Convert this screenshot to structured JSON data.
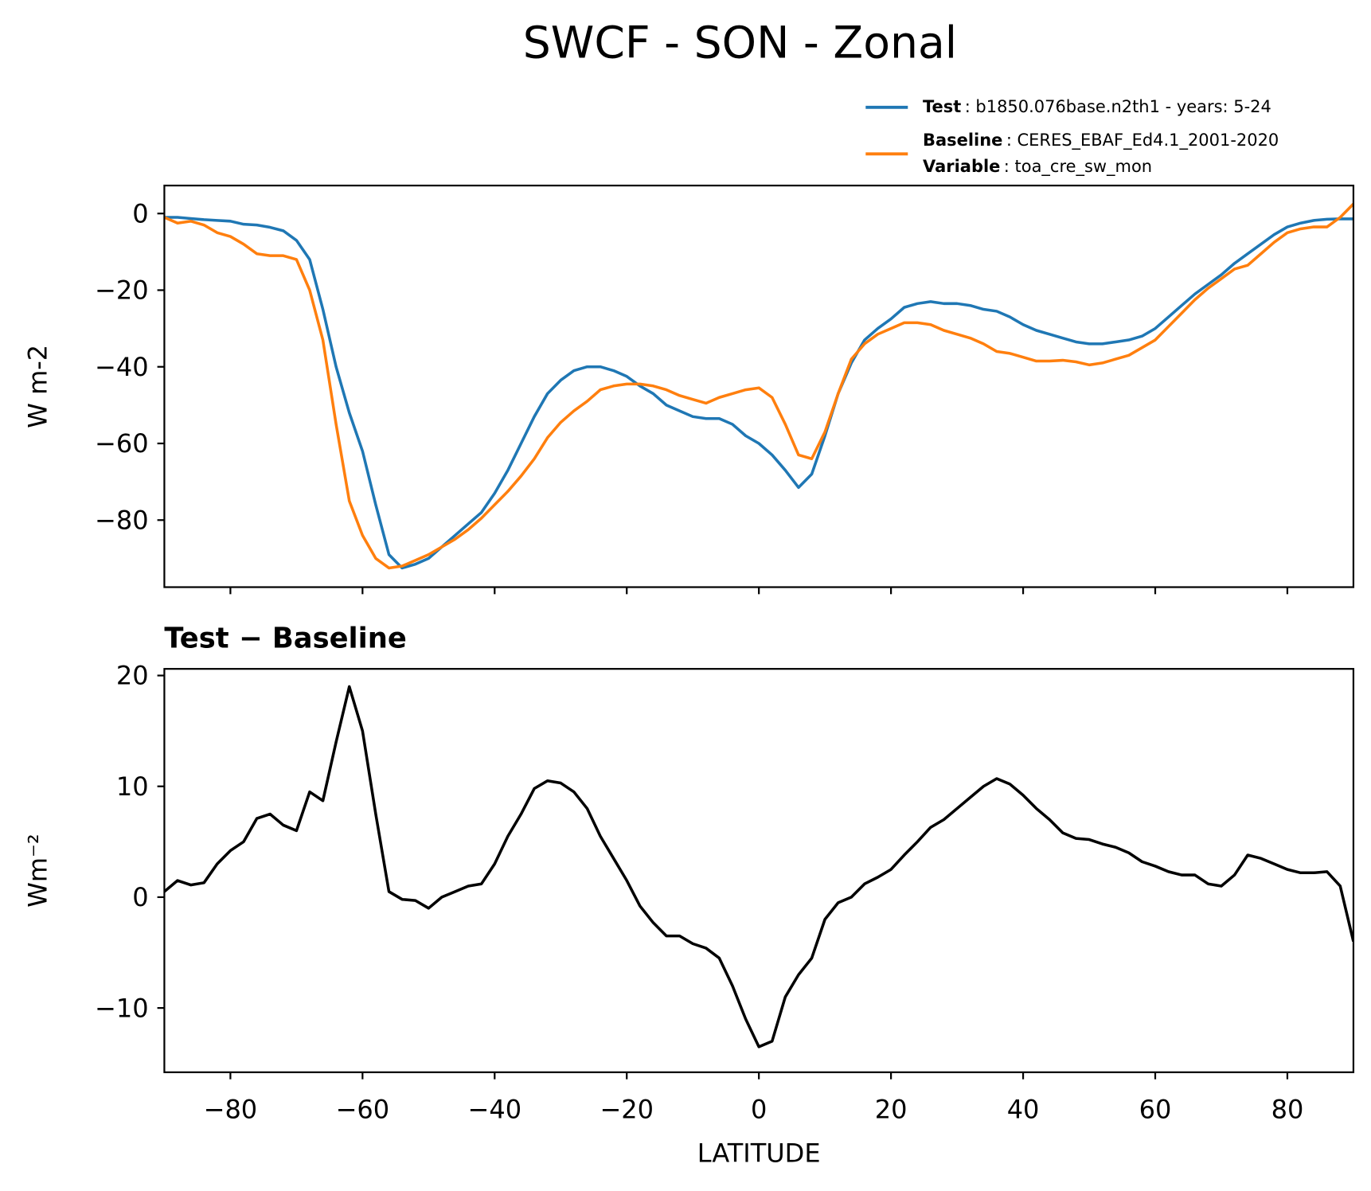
{
  "chart_data": [
    {
      "type": "line",
      "title": "SWCF - SON - Zonal",
      "ylabel": "W m-2",
      "x": [
        -90,
        -88,
        -86,
        -84,
        -82,
        -80,
        -78,
        -76,
        -74,
        -72,
        -70,
        -68,
        -66,
        -64,
        -62,
        -60,
        -58,
        -56,
        -54,
        -52,
        -50,
        -48,
        -46,
        -44,
        -42,
        -40,
        -38,
        -36,
        -34,
        -32,
        -30,
        -28,
        -26,
        -24,
        -22,
        -20,
        -18,
        -16,
        -14,
        -12,
        -10,
        -8,
        -6,
        -4,
        -2,
        0,
        2,
        4,
        6,
        8,
        10,
        12,
        14,
        16,
        18,
        20,
        22,
        24,
        26,
        28,
        30,
        32,
        34,
        36,
        38,
        40,
        42,
        44,
        46,
        48,
        50,
        52,
        54,
        56,
        58,
        60,
        62,
        64,
        66,
        68,
        70,
        72,
        74,
        76,
        78,
        80,
        82,
        84,
        86,
        88,
        90
      ],
      "series": [
        {
          "name": "Test",
          "description": ": b1850.076base.n2th1 - years: 5-24",
          "color": "#1f77b4",
          "values": [
            -1,
            -1,
            -1.3,
            -1.6,
            -1.8,
            -2,
            -2.8,
            -3,
            -3.6,
            -4.5,
            -7,
            -12,
            -25,
            -40,
            -52,
            -62,
            -76,
            -89,
            -92.5,
            -91.5,
            -90,
            -87,
            -84,
            -81,
            -78,
            -73,
            -67,
            -60,
            -53,
            -47,
            -43.5,
            -41,
            -40,
            -40,
            -41,
            -42.5,
            -45,
            -47,
            -50,
            -51.5,
            -53,
            -53.5,
            -53.5,
            -55,
            -58,
            -60,
            -63,
            -67,
            -71.5,
            -68,
            -58,
            -47,
            -39,
            -33,
            -30,
            -27.5,
            -24.5,
            -23.5,
            -23,
            -23.5,
            -23.5,
            -24,
            -25,
            -25.5,
            -27,
            -29,
            -30.5,
            -31.5,
            -32.5,
            -33.5,
            -34,
            -34,
            -33.5,
            -33,
            -32,
            -30,
            -27,
            -24,
            -21,
            -18.5,
            -16,
            -13,
            -10.5,
            -8,
            -5.5,
            -3.5,
            -2.5,
            -1.8,
            -1.5,
            -1.4,
            -1.4
          ]
        },
        {
          "name": "Baseline",
          "description": ": CERES_EBAF_Ed4.1_2001-2020",
          "color": "#ff7f0e",
          "values": [
            -1,
            -2.5,
            -2,
            -3,
            -5,
            -6,
            -8,
            -10.5,
            -11,
            -11,
            -12,
            -20,
            -33,
            -55,
            -75,
            -84,
            -90,
            -92.5,
            -92,
            -90.5,
            -89,
            -87,
            -85,
            -82.5,
            -79.5,
            -76,
            -72.5,
            -68.5,
            -64,
            -58.5,
            -54.5,
            -51.5,
            -49,
            -46,
            -45,
            -44.5,
            -44.5,
            -45,
            -46,
            -47.5,
            -48.5,
            -49.5,
            -48,
            -47,
            -46,
            -45.5,
            -48,
            -55,
            -63,
            -64,
            -57,
            -47,
            -38,
            -34,
            -31.5,
            -30,
            -28.5,
            -28.5,
            -29,
            -30.5,
            -31.5,
            -32.5,
            -34,
            -36,
            -36.5,
            -37.5,
            -38.5,
            -38.5,
            -38.3,
            -38.7,
            -39.5,
            -39,
            -38,
            -37,
            -35,
            -33,
            -29.5,
            -26,
            -22.5,
            -19.5,
            -17,
            -14.5,
            -13.5,
            -10.5,
            -7.5,
            -5,
            -4,
            -3.5,
            -3.5,
            -1,
            2.5
          ]
        }
      ],
      "variable": {
        "label": "Variable",
        "value": ": toa_cre_sw_mon"
      },
      "xlim": [
        -90,
        90
      ],
      "xticks": [
        -80,
        -60,
        -40,
        -20,
        0,
        20,
        40,
        60,
        80
      ],
      "ylim": [
        -97.5,
        7.3
      ],
      "yticks": [
        0,
        {
          "value": -20,
          "label": "−20"
        },
        {
          "value": -40,
          "label": "−40"
        },
        {
          "value": -60,
          "label": "−60"
        },
        {
          "value": -80,
          "label": "−80"
        }
      ]
    },
    {
      "type": "line",
      "title": "Test − Baseline",
      "ylabel": "Wm⁻²",
      "xlabel": "LATITUDE",
      "x": [
        -90,
        -88,
        -86,
        -84,
        -82,
        -80,
        -78,
        -76,
        -74,
        -72,
        -70,
        -68,
        -66,
        -64,
        -62,
        -60,
        -58,
        -56,
        -54,
        -52,
        -50,
        -48,
        -46,
        -44,
        -42,
        -40,
        -38,
        -36,
        -34,
        -32,
        -30,
        -28,
        -26,
        -24,
        -22,
        -20,
        -18,
        -16,
        -14,
        -12,
        -10,
        -8,
        -6,
        -4,
        -2,
        0,
        2,
        4,
        6,
        8,
        10,
        12,
        14,
        16,
        18,
        20,
        22,
        24,
        26,
        28,
        30,
        32,
        34,
        36,
        38,
        40,
        42,
        44,
        46,
        48,
        50,
        52,
        54,
        56,
        58,
        60,
        62,
        64,
        66,
        68,
        70,
        72,
        74,
        76,
        78,
        80,
        82,
        84,
        86,
        88,
        90
      ],
      "series": [
        {
          "color": "#000000",
          "values": [
            0.5,
            1.5,
            1.1,
            1.3,
            3,
            4.2,
            5,
            7.1,
            7.5,
            6.5,
            6,
            9.5,
            8.7,
            14,
            19,
            15,
            7.5,
            0.5,
            -0.2,
            -0.3,
            -1,
            0,
            0.5,
            1,
            1.2,
            3,
            5.5,
            7.5,
            9.8,
            10.5,
            10.3,
            9.5,
            8,
            5.5,
            3.5,
            1.5,
            -0.8,
            -2.3,
            -3.5,
            -3.5,
            -4.2,
            -4.6,
            -5.5,
            -8,
            -11,
            -13.5,
            -13,
            -9,
            -7,
            -5.5,
            -2,
            -0.5,
            0,
            1.2,
            1.8,
            2.5,
            3.8,
            5,
            6.3,
            7,
            8,
            9,
            10,
            10.7,
            10.2,
            9.2,
            8,
            7,
            5.8,
            5.3,
            5.2,
            4.8,
            4.5,
            4,
            3.2,
            2.8,
            2.3,
            2,
            2,
            1.2,
            1,
            2,
            3.8,
            3.5,
            3,
            2.5,
            2.2,
            2.2,
            2.3,
            1,
            -4
          ]
        }
      ],
      "xlim": [
        -90,
        90
      ],
      "xticks": [
        {
          "value": -80,
          "label": "−80"
        },
        {
          "value": -60,
          "label": "−60"
        },
        {
          "value": -40,
          "label": "−40"
        },
        {
          "value": -20,
          "label": "−20"
        },
        0,
        20,
        40,
        60,
        80
      ],
      "ylim": [
        -15.8,
        20.6
      ],
      "yticks": [
        {
          "value": -10,
          "label": "−10"
        },
        0,
        10,
        20
      ]
    }
  ]
}
